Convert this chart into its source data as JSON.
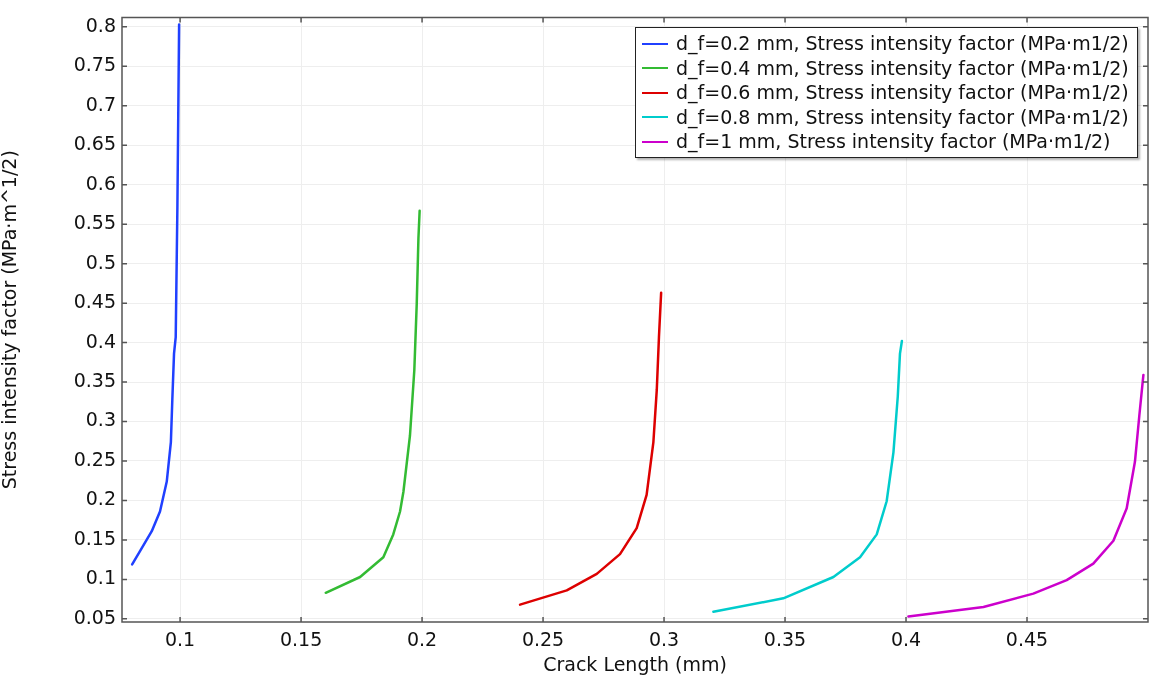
{
  "chart_data": {
    "type": "line",
    "xlabel": "Crack Length (mm)",
    "ylabel": "Stress intensity factor (MPa·m^1/2)",
    "xlim": [
      0.076,
      0.5
    ],
    "ylim": [
      0.046,
      0.812
    ],
    "xticks": [
      0.1,
      0.15,
      0.2,
      0.25,
      0.3,
      0.35,
      0.4,
      0.45
    ],
    "yticks": [
      0.05,
      0.1,
      0.15,
      0.2,
      0.25,
      0.3,
      0.35,
      0.4,
      0.45,
      0.5,
      0.55,
      0.6,
      0.65,
      0.7,
      0.75,
      0.8
    ],
    "grid": true,
    "legend": "top right",
    "marker": "none",
    "line_style": "solid",
    "series": [
      {
        "name": "d_f=0.2 mm, Stress intensity factor (MPa·m1/2)",
        "color": "#2040ff",
        "x": [
          0.0802,
          0.0835,
          0.0883,
          0.0917,
          0.0945,
          0.0962,
          0.0968,
          0.0975,
          0.0982,
          0.0989,
          0.0996
        ],
        "values": [
          0.119,
          0.136,
          0.161,
          0.186,
          0.224,
          0.274,
          0.328,
          0.386,
          0.407,
          0.574,
          0.803
        ]
      },
      {
        "name": "d_f=0.4 mm, Stress intensity factor (MPa·m1/2)",
        "color": "#33bb33",
        "x": [
          0.1602,
          0.1744,
          0.184,
          0.1881,
          0.1909,
          0.1923,
          0.195,
          0.1968,
          0.1978,
          0.1985,
          0.199
        ],
        "values": [
          0.083,
          0.103,
          0.128,
          0.157,
          0.186,
          0.211,
          0.282,
          0.365,
          0.449,
          0.532,
          0.567
        ]
      },
      {
        "name": "d_f=0.6 mm, Stress intensity factor (MPa·m1/2)",
        "color": "#dd0000",
        "x": [
          0.2405,
          0.2598,
          0.2722,
          0.2818,
          0.2887,
          0.2928,
          0.2956,
          0.297,
          0.2979,
          0.2988
        ],
        "values": [
          0.068,
          0.086,
          0.107,
          0.132,
          0.165,
          0.207,
          0.274,
          0.34,
          0.407,
          0.463
        ]
      },
      {
        "name": "d_f=0.8 mm, Stress intensity factor (MPa·m1/2)",
        "color": "#00cccc",
        "x": [
          0.3204,
          0.3493,
          0.37,
          0.381,
          0.3879,
          0.392,
          0.3948,
          0.3966,
          0.3975,
          0.3983
        ],
        "values": [
          0.059,
          0.076,
          0.103,
          0.128,
          0.157,
          0.199,
          0.261,
          0.332,
          0.386,
          0.402
        ]
      },
      {
        "name": "d_f=1 mm, Stress intensity factor (MPa·m1/2)",
        "color": "#cc00cc",
        "x": [
          0.401,
          0.432,
          0.4526,
          0.4664,
          0.4774,
          0.4857,
          0.4912,
          0.4946,
          0.4964,
          0.4981
        ],
        "values": [
          0.053,
          0.065,
          0.082,
          0.099,
          0.12,
          0.149,
          0.19,
          0.249,
          0.307,
          0.359
        ]
      }
    ]
  }
}
